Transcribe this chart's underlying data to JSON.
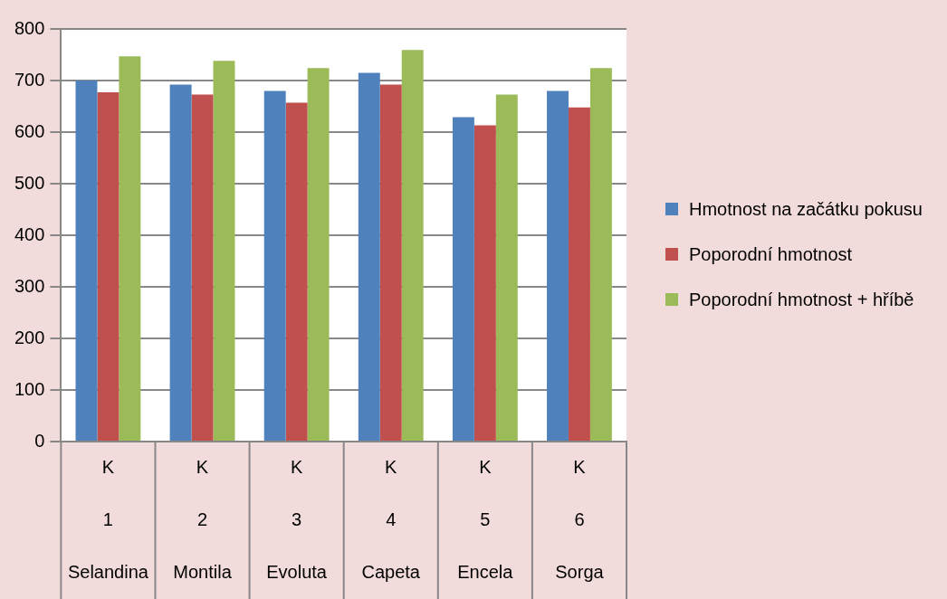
{
  "chart_data": {
    "type": "bar",
    "categories": [
      "K\n1\nSelandina",
      "K\n2\nMontila",
      "K\n3\nEvoluta",
      "K\n4\nCapeta",
      "K\n5\nEncela",
      "K\n6\nSorga"
    ],
    "series": [
      {
        "name": "Hmotnost na začátku pokusu",
        "color": "#4f81bd",
        "values": [
          700,
          692,
          680,
          715,
          629,
          680
        ]
      },
      {
        "name": "Poporodní hmotnost",
        "color": "#c0504d",
        "values": [
          677,
          673,
          657,
          692,
          613,
          648
        ]
      },
      {
        "name": "Poporodní hmotnost  + hříbě",
        "color": "#9bbb59",
        "values": [
          747,
          738,
          724,
          759,
          673,
          724
        ]
      }
    ],
    "ylim": [
      0,
      800
    ],
    "yticks": [
      0,
      100,
      200,
      300,
      400,
      500,
      600,
      700,
      800
    ],
    "grid": "y",
    "legend": "right"
  }
}
